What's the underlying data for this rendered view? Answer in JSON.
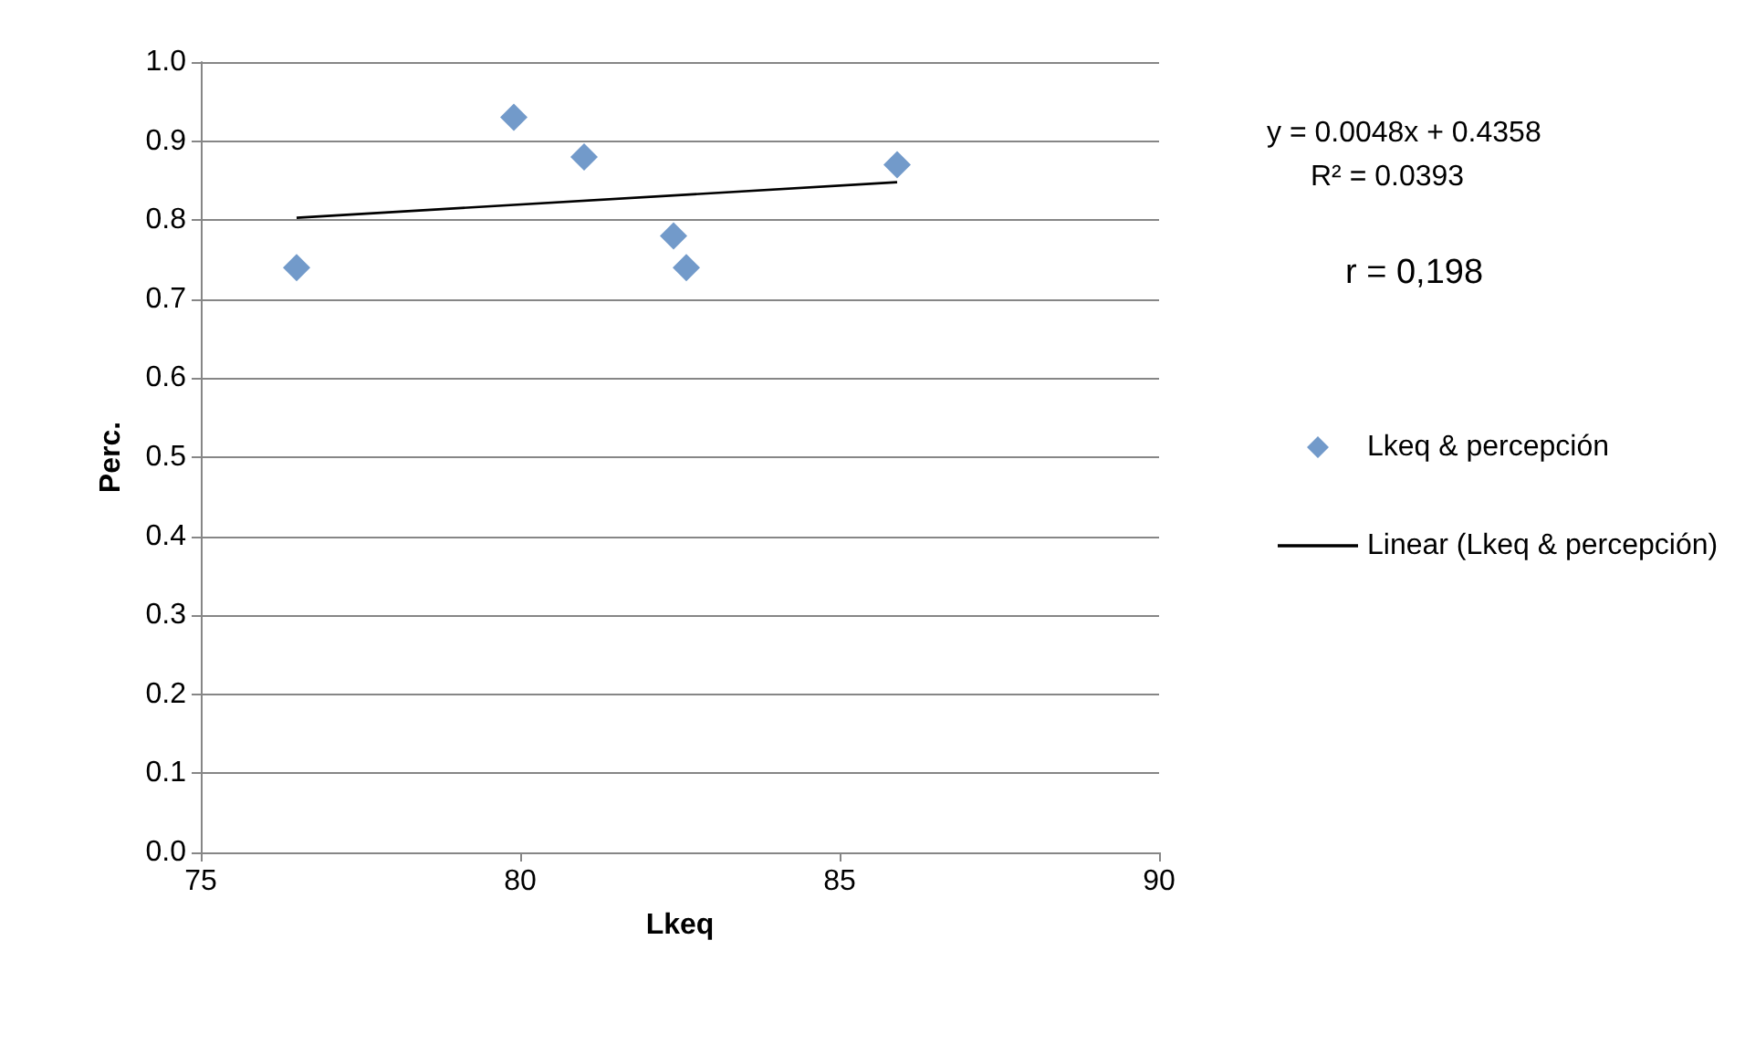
{
  "chart_data": {
    "type": "scatter",
    "xlabel": "Lkeq",
    "ylabel": "Perc.",
    "xlim": [
      75,
      90
    ],
    "xticks": [
      75,
      80,
      85,
      90
    ],
    "ylim": [
      0,
      1
    ],
    "yticks": [
      {
        "value": 0,
        "label": "0.0"
      },
      {
        "value": 0.1,
        "label": "0.1"
      },
      {
        "value": 0.2,
        "label": "0.2"
      },
      {
        "value": 0.3,
        "label": "0.3"
      },
      {
        "value": 0.4,
        "label": "0.4"
      },
      {
        "value": 0.5,
        "label": "0.5"
      },
      {
        "value": 0.6,
        "label": "0.6"
      },
      {
        "value": 0.7,
        "label": "0.7"
      },
      {
        "value": 0.8,
        "label": "0.8"
      },
      {
        "value": 0.9,
        "label": "0.9"
      },
      {
        "value": 1,
        "label": "1.0"
      }
    ],
    "grid": "y",
    "legend": "right",
    "marker": "diamond",
    "annotations": [
      "y = 0.0048x + 0.4358",
      "R² = 0.0393",
      "r = 0,198"
    ],
    "series": [
      {
        "name": "Lkeq & percepción",
        "color": "#4f81bd",
        "x": [
          76.5,
          79.9,
          81.0,
          82.4,
          82.6,
          85.9
        ],
        "values": [
          0.74,
          0.93,
          0.88,
          0.78,
          0.74,
          0.87
        ]
      },
      {
        "name": "Linear (Lkeq & percepción)",
        "type": "line",
        "color": "#000000",
        "marker": "none",
        "x": [
          76.5,
          85.9
        ],
        "values": [
          0.803,
          0.848
        ]
      }
    ]
  }
}
